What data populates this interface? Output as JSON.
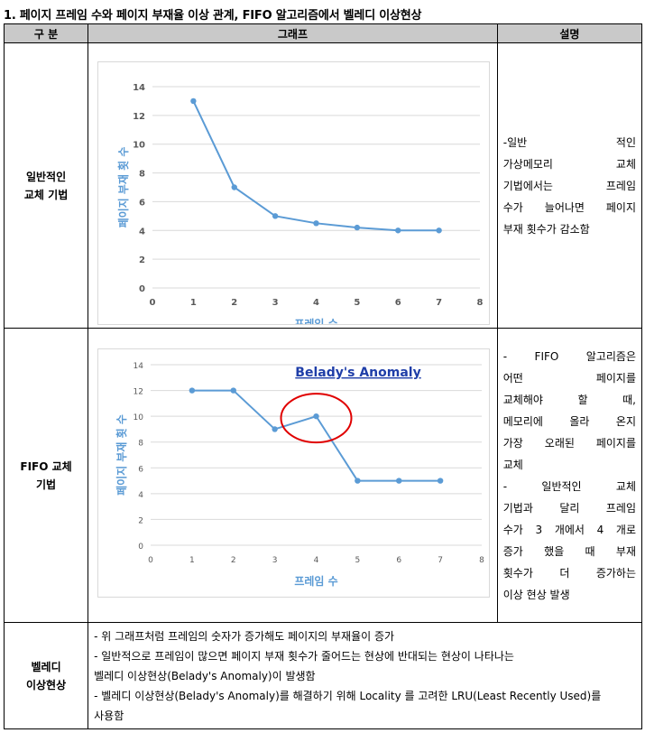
{
  "title": "1. 페이지 프레임 수와 페이지 부재율 이상 관계, FIFO 알고리즘에서 벨레디 이상현상",
  "headers": [
    "구 분",
    "그래프",
    "설명"
  ],
  "rows": [
    {
      "label_lines": [
        "일반적인",
        "교체 기법"
      ],
      "desc_lines": [
        "-일반 적인",
        "가상메모리 교체",
        "기법에서는 프레임",
        "수가 늘어나면 페이지",
        "부재 횟수가 감소함"
      ]
    },
    {
      "label_lines": [
        "FIFO 교체",
        "기법"
      ],
      "desc_lines": [
        "- FIFO 알고리즘은",
        "어떤 페이지를",
        "교체해야 할 때,",
        "메모리에 올라 온지",
        "가장 오래된 페이지를",
        "교체",
        "- 일반적인 교체",
        "기법과 달리 프레임",
        "수가 3 개에서 4 개로",
        "증가 했을 때 부재",
        "횟수가 더 증가하는",
        "이상 현상 발생"
      ]
    }
  ],
  "bottom": {
    "label_lines": [
      "벨레디",
      "이상현상"
    ],
    "lines": [
      "- 위 그래프처럼 프레임의 숫자가 증가해도 페이지의 부재율이 증가",
      "- 일반적으로 프레임이 많으면 페이지 부재 횟수가 줄어드는 현상에 반대되는 현상이 나타나는",
      "벨레디 이상현상(Belady's Anomaly)이 발생함",
      "- 벨레디 이상현상(Belady's Anomaly)를 해결하기 위해 Locality 를 고려한 LRU(Least Recently Used)를",
      "사용함"
    ]
  },
  "chart_data": [
    {
      "type": "line",
      "title": "",
      "xlabel": "프레임 수",
      "ylabel": "페이지 부재 횟 수",
      "xlim": [
        0,
        8
      ],
      "ylim": [
        0,
        14
      ],
      "xticks": [
        0,
        1,
        2,
        3,
        4,
        5,
        6,
        7,
        8
      ],
      "yticks": [
        0,
        2,
        4,
        6,
        8,
        10,
        12,
        14
      ],
      "grid": "horizontal",
      "color": "#5b9bd5",
      "series": [
        {
          "x": [
            1,
            2,
            3,
            4,
            5,
            6,
            7
          ],
          "y": [
            13,
            7,
            5,
            4.5,
            4.2,
            4,
            4
          ]
        }
      ]
    },
    {
      "type": "line",
      "title": "Belady's Anomaly",
      "xlabel": "프레임 수",
      "ylabel": "페이지 부재 횟 수",
      "xlim": [
        0,
        8
      ],
      "ylim": [
        0,
        14
      ],
      "xticks": [
        0,
        1,
        2,
        3,
        4,
        5,
        6,
        7,
        8
      ],
      "yticks": [
        0,
        2,
        4,
        6,
        8,
        10,
        12,
        14
      ],
      "grid": "horizontal",
      "color": "#5b9bd5",
      "highlight_x": 4,
      "highlight_color": "#e00000",
      "series": [
        {
          "x": [
            1,
            2,
            3,
            4,
            5,
            6,
            7
          ],
          "y": [
            12,
            12,
            9,
            10,
            5,
            5,
            5
          ]
        }
      ]
    }
  ]
}
